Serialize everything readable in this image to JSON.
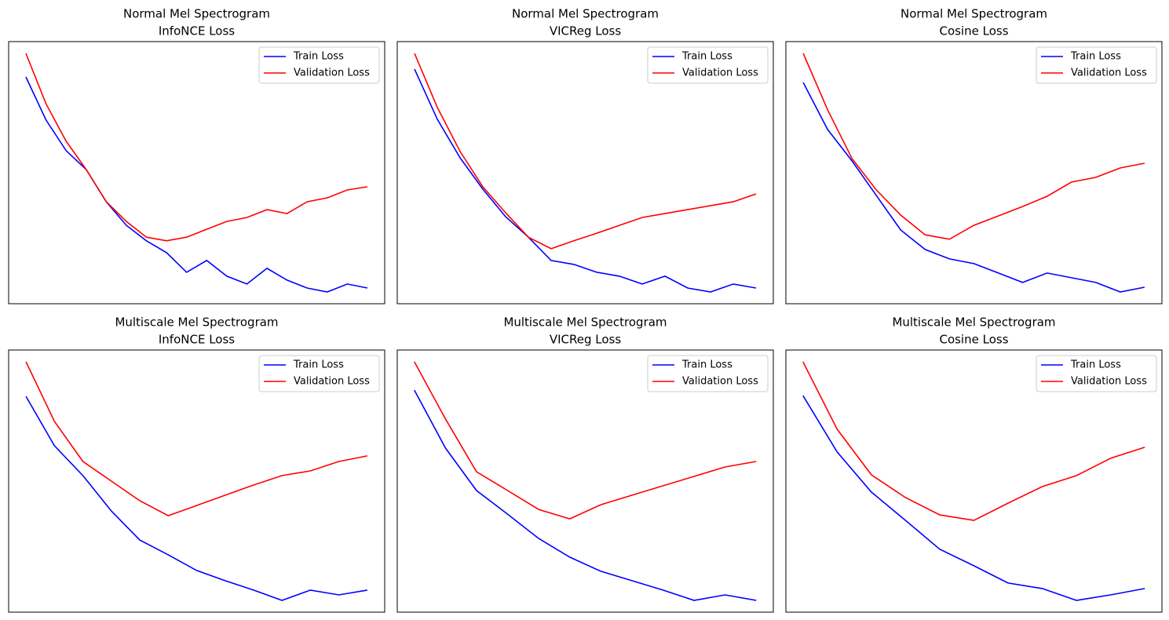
{
  "chart_data": [
    {
      "type": "line",
      "title": "Normal Mel Spectrogram",
      "subtitle": "InfoNCE Loss",
      "legend": "upper right",
      "x": [
        0,
        1,
        2,
        3,
        4,
        5,
        6,
        7,
        8,
        9,
        10,
        11,
        12,
        13,
        14,
        15,
        16,
        17
      ],
      "xlim": [
        -0.86,
        17.86
      ],
      "ylim": [
        0,
        100
      ],
      "series": [
        {
          "name": "Train Loss",
          "color": "#0000ff",
          "values": [
            86.5,
            70.1,
            58.4,
            51.2,
            38.9,
            29.9,
            24.0,
            19.5,
            12.0,
            16.5,
            10.5,
            7.5,
            13.5,
            9.0,
            6.0,
            4.5,
            7.5,
            6.0
          ]
        },
        {
          "name": "Validation Loss",
          "color": "#ff0000",
          "values": [
            95.5,
            76.3,
            62.0,
            51.2,
            38.9,
            31.4,
            25.4,
            24.0,
            25.4,
            28.4,
            31.4,
            32.9,
            35.9,
            34.4,
            38.9,
            40.4,
            43.4,
            44.6
          ]
        }
      ]
    },
    {
      "type": "line",
      "title": "Normal Mel Spectrogram",
      "subtitle": "VICReg Loss",
      "legend": "upper right",
      "x": [
        0,
        1,
        2,
        3,
        4,
        5,
        6,
        7,
        8,
        9,
        10,
        11,
        12,
        13,
        14,
        15
      ],
      "xlim": [
        -0.76,
        15.76
      ],
      "ylim": [
        0,
        100
      ],
      "series": [
        {
          "name": "Train Loss",
          "color": "#0000ff",
          "values": [
            89.5,
            70.4,
            55.7,
            43.7,
            33.2,
            25.4,
            16.5,
            15.0,
            12.0,
            10.5,
            7.5,
            10.5,
            6.0,
            4.5,
            7.5,
            6.0
          ]
        },
        {
          "name": "Validation Loss",
          "color": "#ff0000",
          "values": [
            95.5,
            74.9,
            58.1,
            44.6,
            34.7,
            25.4,
            21.0,
            24.0,
            26.9,
            29.9,
            32.9,
            34.4,
            35.9,
            37.4,
            38.9,
            41.9
          ]
        }
      ]
    },
    {
      "type": "line",
      "title": "Normal Mel Spectrogram",
      "subtitle": "Cosine Loss",
      "legend": "upper right",
      "x": [
        0,
        1,
        2,
        3,
        4,
        5,
        6,
        7,
        8,
        9,
        10,
        11,
        12,
        13,
        14
      ],
      "xlim": [
        -0.71,
        14.71
      ],
      "ylim": [
        0,
        100
      ],
      "series": [
        {
          "name": "Train Loss",
          "color": "#0000ff",
          "values": [
            84.4,
            66.5,
            54.5,
            41.3,
            28.1,
            20.7,
            17.1,
            15.3,
            11.7,
            8.1,
            11.7,
            9.9,
            8.1,
            4.5,
            6.3
          ]
        },
        {
          "name": "Validation Loss",
          "color": "#ff0000",
          "values": [
            95.5,
            74.0,
            55.4,
            43.4,
            33.8,
            26.3,
            24.6,
            29.9,
            33.5,
            37.1,
            41.0,
            46.4,
            48.2,
            51.8,
            53.6
          ]
        }
      ]
    },
    {
      "type": "line",
      "title": "Multiscale Mel Spectrogram",
      "subtitle": "InfoNCE Loss",
      "legend": "upper right",
      "x": [
        0,
        1,
        2,
        3,
        4,
        5,
        6,
        7,
        8,
        9,
        10,
        11,
        12
      ],
      "xlim": [
        -0.61,
        12.61
      ],
      "ylim": [
        0,
        100
      ],
      "series": [
        {
          "name": "Train Loss",
          "color": "#0000ff",
          "values": [
            82.3,
            63.5,
            52.1,
            38.6,
            27.5,
            21.9,
            15.9,
            12.0,
            8.4,
            4.5,
            8.4,
            6.6,
            8.4
          ]
        },
        {
          "name": "Validation Loss",
          "color": "#ff0000",
          "values": [
            95.5,
            72.8,
            57.5,
            50.0,
            42.5,
            36.8,
            40.7,
            44.6,
            48.5,
            52.1,
            53.9,
            57.5,
            59.6
          ]
        }
      ]
    },
    {
      "type": "line",
      "title": "Multiscale Mel Spectrogram",
      "subtitle": "VICReg Loss",
      "legend": "upper right",
      "x": [
        0,
        1,
        2,
        3,
        4,
        5,
        6,
        7,
        8,
        9,
        10,
        11
      ],
      "xlim": [
        -0.55,
        11.55
      ],
      "ylim": [
        0,
        100
      ],
      "series": [
        {
          "name": "Train Loss",
          "color": "#0000ff",
          "values": [
            84.7,
            62.6,
            46.4,
            37.4,
            28.1,
            21.0,
            15.6,
            12.0,
            8.4,
            4.5,
            6.6,
            4.5
          ]
        },
        {
          "name": "Validation Loss",
          "color": "#ff0000",
          "values": [
            95.5,
            73.7,
            53.6,
            46.4,
            39.2,
            35.6,
            41.0,
            44.6,
            48.2,
            51.8,
            55.4,
            57.5
          ]
        }
      ]
    },
    {
      "type": "line",
      "title": "Multiscale Mel Spectrogram",
      "subtitle": "Cosine Loss",
      "legend": "upper right",
      "x": [
        0,
        1,
        2,
        3,
        4,
        5,
        6,
        7,
        8,
        9,
        10
      ],
      "xlim": [
        -0.5,
        10.5
      ],
      "ylim": [
        0,
        100
      ],
      "series": [
        {
          "name": "Train Loss",
          "color": "#0000ff",
          "values": [
            82.6,
            61.1,
            45.8,
            35.0,
            24.0,
            17.7,
            11.1,
            9.0,
            4.5,
            6.6,
            9.0
          ]
        },
        {
          "name": "Validation Loss",
          "color": "#ff0000",
          "values": [
            95.5,
            69.8,
            52.4,
            43.7,
            37.1,
            35.0,
            41.6,
            47.9,
            52.1,
            58.7,
            62.9
          ]
        }
      ]
    }
  ]
}
